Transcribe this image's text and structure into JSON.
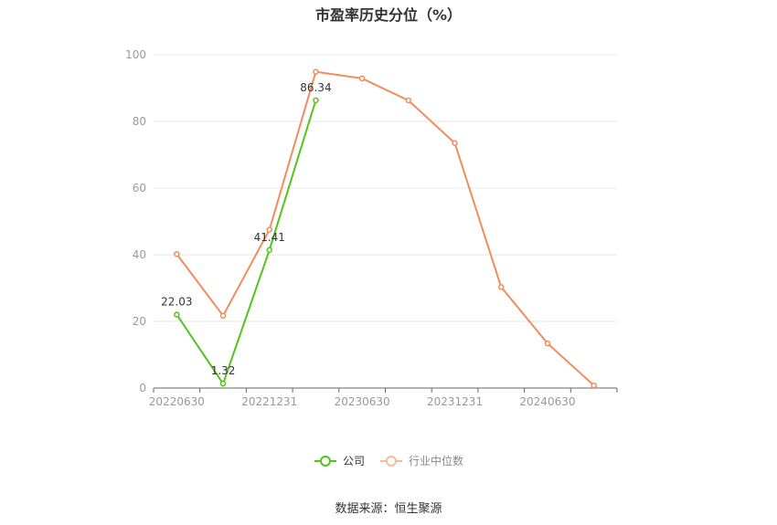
{
  "chart_data": {
    "type": "line",
    "title": "市盈率历史分位（%）",
    "x": [
      "20220630",
      "20220930",
      "20221231",
      "20230331",
      "20230630",
      "20230930",
      "20231231",
      "20240331",
      "20240630",
      "20240930"
    ],
    "x_tick_labels": [
      "20220630",
      "20221231",
      "20230630",
      "20231231",
      "20240630"
    ],
    "y_ticks": [
      0,
      20,
      40,
      60,
      80,
      100
    ],
    "ylim": [
      0,
      100
    ],
    "grid": true,
    "legend_position": "bottom",
    "series": [
      {
        "name": "公司",
        "color": "#52c41a",
        "values": [
          22.03,
          1.32,
          41.41,
          86.34,
          null,
          null,
          null,
          null,
          null,
          null
        ],
        "data_labels": [
          "22.03",
          "1.32",
          "41.41",
          "86.34"
        ]
      },
      {
        "name": "行业中位数",
        "color": "#f28c5c",
        "values": [
          40.2,
          21.7,
          47.5,
          94.9,
          92.9,
          86.3,
          73.5,
          30.3,
          13.4,
          0.8
        ]
      }
    ]
  },
  "source": "数据来源：恒生聚源"
}
